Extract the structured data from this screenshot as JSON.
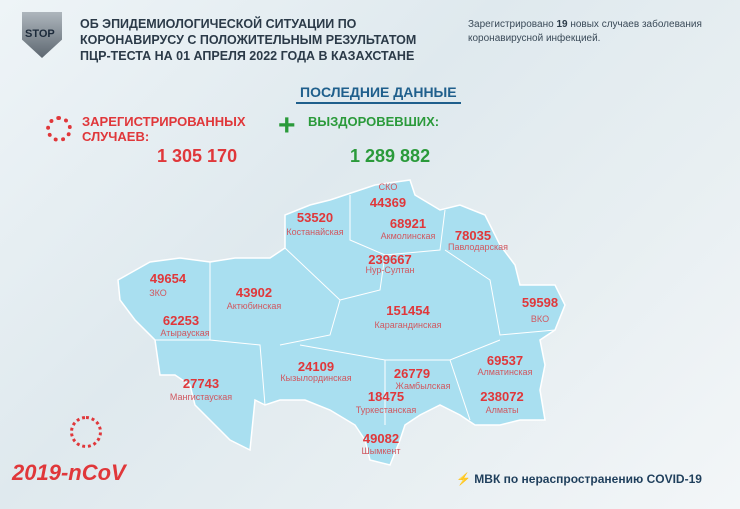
{
  "header": {
    "title_lines": [
      "ОБ ЭПИДЕМИОЛОГИЧЕСКОЙ СИТУАЦИИ ПО",
      "КОРОНАВИРУСУ С ПОЛОЖИТЕЛЬНЫМ РЕЗУЛЬТАТОМ",
      "ПЦР-ТЕСТА НА 01 АПРЕЛЯ 2022 ГОДА В КАЗАХСТАНЕ"
    ],
    "logo_text": "STOP",
    "note_prefix": "Зарегистрировано ",
    "note_count": "19",
    "note_suffix": " новых случаев заболевания коронавирусной инфекцией."
  },
  "latest": "ПОСЛЕДНИЕ ДАННЫЕ",
  "registered": {
    "label_1": "ЗАРЕГИСТРИРОВАННЫХ",
    "label_2": "СЛУЧАЕВ:",
    "value": "1 305 170"
  },
  "recovered": {
    "label": "ВЫЗДОРОВЕВШИХ:",
    "value": "1 289 882"
  },
  "regions": [
    {
      "name": "СКО",
      "value": "44369"
    },
    {
      "name": "Костанайская",
      "value": "53520"
    },
    {
      "name": "Акмолинская",
      "value": "68921"
    },
    {
      "name": "Павлодарская",
      "value": "78035"
    },
    {
      "name": "Нур-Султан",
      "value": "239667"
    },
    {
      "name": "ЗКО",
      "value": "49654"
    },
    {
      "name": "Актюбинская",
      "value": "43902"
    },
    {
      "name": "Карагандинская",
      "value": "151454"
    },
    {
      "name": "ВКО",
      "value": "59598"
    },
    {
      "name": "Атырауская",
      "value": "62253"
    },
    {
      "name": "Кызылординская",
      "value": "24109"
    },
    {
      "name": "Алматинская",
      "value": "69537"
    },
    {
      "name": "Жамбылская",
      "value": "26779"
    },
    {
      "name": "Мангистауская",
      "value": "27743"
    },
    {
      "name": "Туркестанская",
      "value": "18475"
    },
    {
      "name": "Алматы",
      "value": "238072"
    },
    {
      "name": "Шымкент",
      "value": "49082"
    }
  ],
  "colors": {
    "map": "#a9dff0",
    "red": "#e0373a",
    "green": "#2a9a3a",
    "blue": "#1f5f8c"
  },
  "footer": {
    "virus_label": "2019-nCoV",
    "mvk": "МВК по нераспространению COVID-19"
  }
}
